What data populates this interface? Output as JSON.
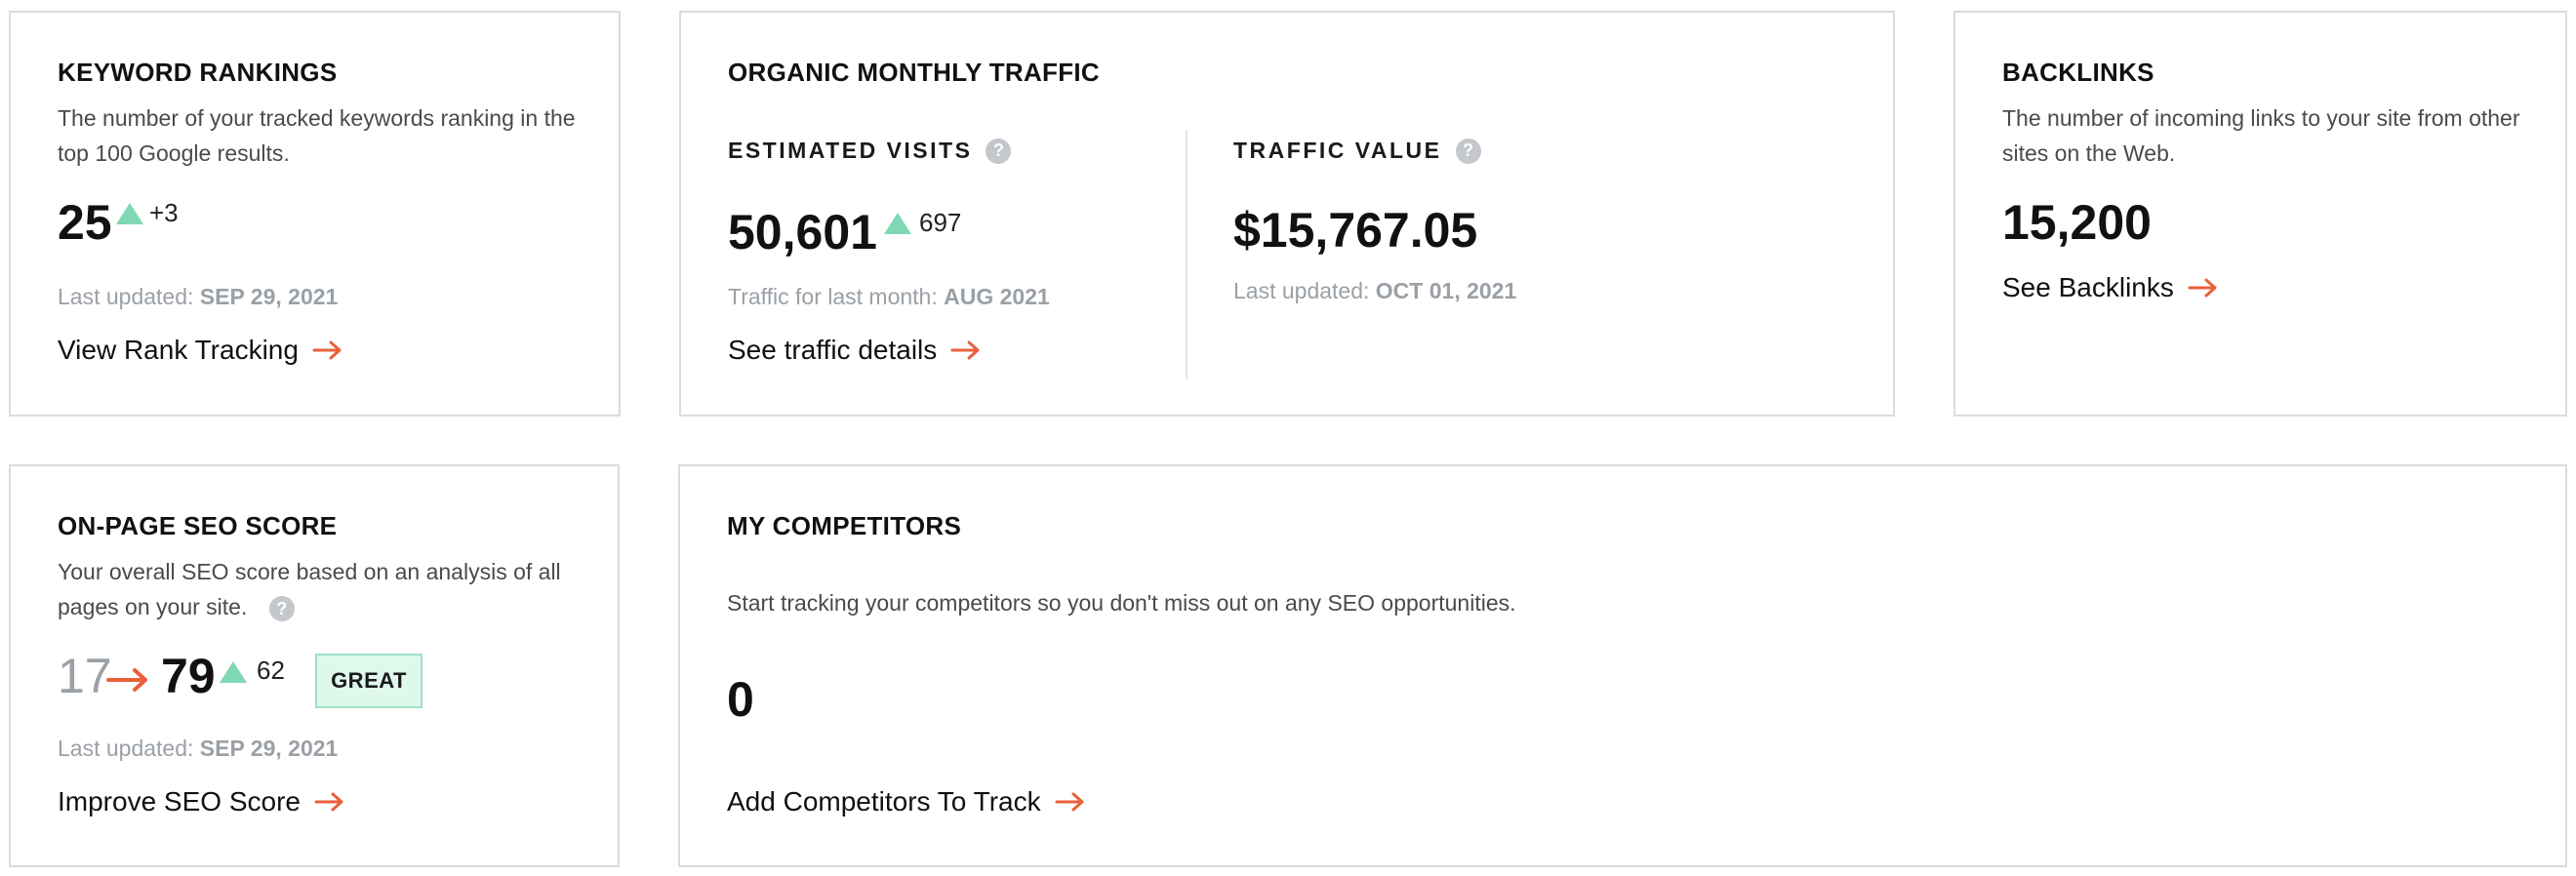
{
  "keyword_rankings": {
    "title": "KEYWORD RANKINGS",
    "description": "The number of your tracked keywords ranking in the top 100 Google results.",
    "value": "25",
    "delta": "+3",
    "updated_prefix": "Last updated: ",
    "updated_date": "SEP 29, 2021",
    "link_label": "View Rank Tracking"
  },
  "organic_traffic": {
    "title": "ORGANIC MONTHLY TRAFFIC",
    "visits_label": "ESTIMATED VISITS",
    "visits_value": "50,601",
    "visits_delta": "697",
    "visits_meta_prefix": "Traffic for last month: ",
    "visits_meta_month": "AUG 2021",
    "details_link": "See traffic details",
    "value_label": "TRAFFIC VALUE",
    "value_amount": "$15,767.05",
    "value_meta_prefix": "Last updated: ",
    "value_meta_date": "OCT 01, 2021"
  },
  "backlinks": {
    "title": "BACKLINKS",
    "description": "The number of incoming links to your site from other sites on the Web.",
    "value": "15,200",
    "link_label": "See Backlinks"
  },
  "onpage_seo": {
    "title": "ON-PAGE SEO SCORE",
    "description": "Your overall SEO score based on an analysis of all pages on your site.",
    "old_score": "17",
    "new_score": "79",
    "delta": "62",
    "badge": "GREAT",
    "updated_prefix": "Last updated: ",
    "updated_date": "SEP 29, 2021",
    "link_label": "Improve SEO Score"
  },
  "competitors": {
    "title": "MY COMPETITORS",
    "description": "Start tracking your competitors so you don't miss out on any SEO opportunities.",
    "value": "0",
    "link_label": "Add Competitors To Track"
  },
  "help_glyph": "?",
  "colors": {
    "accent_arrow": "#e8603c",
    "up_triangle": "#7fd8b4",
    "border": "#d9dce1",
    "muted": "#9aa0a6",
    "badge_bg": "#def8ec"
  },
  "icons": [
    "arrow-right-icon",
    "triangle-up-icon",
    "help-icon"
  ]
}
